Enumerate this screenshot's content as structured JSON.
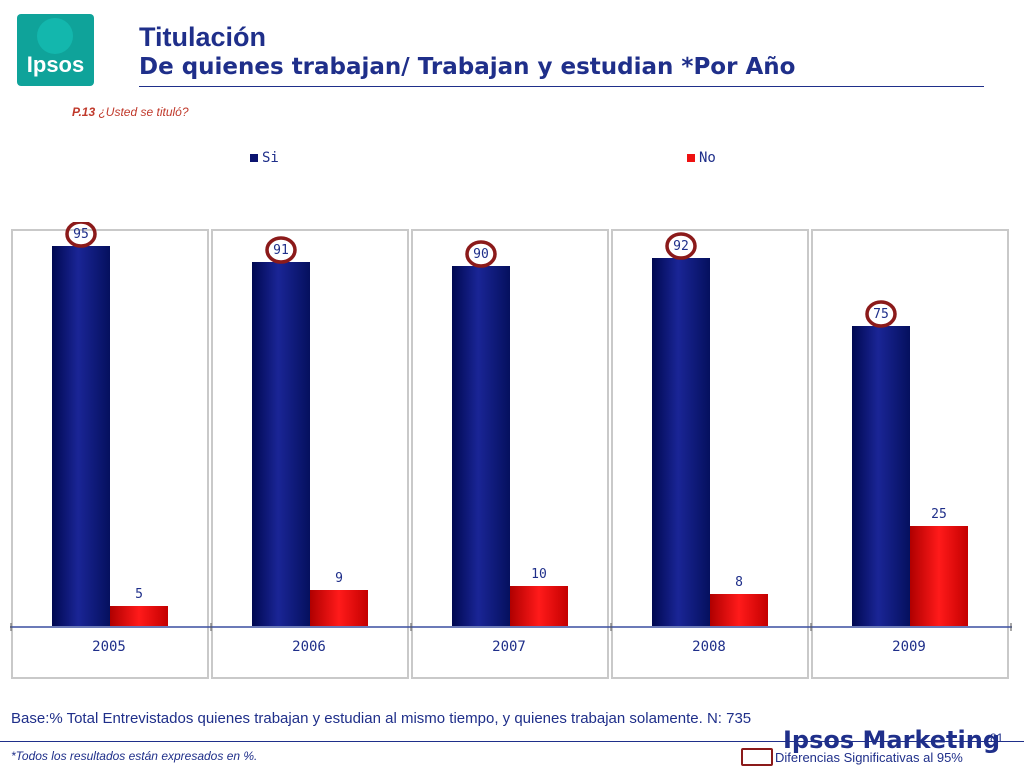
{
  "logo": {
    "text": "Ipsos"
  },
  "header": {
    "title": "Titulación",
    "subtitle": "De quienes trabajan/ Trabajan y estudian *Por Año"
  },
  "question": {
    "code": "P.13",
    "text": " ¿Usted se tituló?"
  },
  "legend": {
    "si": "Si",
    "no": "No"
  },
  "colors": {
    "si": "#0b1470",
    "no": "#ee1111",
    "highlight": "#8b1a1a",
    "axis": "#3a4fa0"
  },
  "chart_data": {
    "type": "bar",
    "categories": [
      "2005",
      "2006",
      "2007",
      "2008",
      "2009"
    ],
    "series": [
      {
        "name": "Si",
        "values": [
          95,
          91,
          90,
          92,
          75
        ]
      },
      {
        "name": "No",
        "values": [
          5,
          9,
          10,
          8,
          25
        ]
      }
    ],
    "ylim": [
      0,
      100
    ],
    "grid": false,
    "legend_position": "top",
    "significant": [
      "Si-2005",
      "Si-2006",
      "Si-2007",
      "Si-2008",
      "Si-2009"
    ]
  },
  "footer": {
    "base": "Base:% Total Entrevistados quienes trabajan y estudian al mismo tiempo, y quienes trabajan solamente. N: 735",
    "note": "*Todos los resultados están expresados en %.",
    "brand": "Ipsos Marketing",
    "page": "81",
    "significance": "Diferencias Significativas al 95%"
  }
}
